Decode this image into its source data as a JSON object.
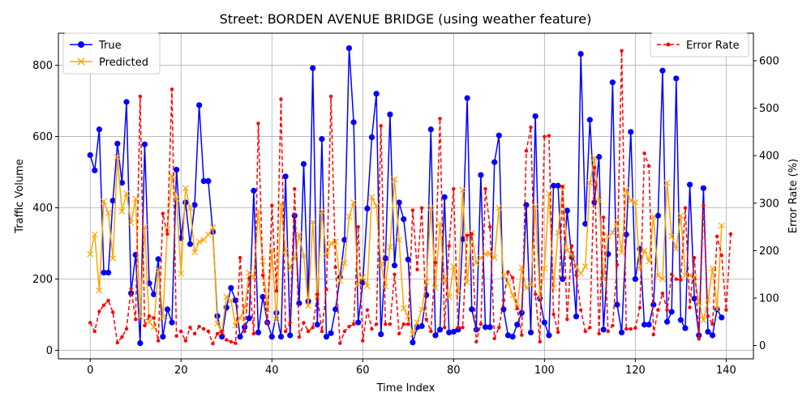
{
  "chart_data": {
    "type": "line",
    "title": "Street: BORDEN AVENUE BRIDGE (using weather feature)",
    "xlabel": "Time Index",
    "ylabel": "Traffic Volume",
    "y2label": "Error Rate (%)",
    "xlim": [
      -7,
      146
    ],
    "ylim": [
      -24,
      890
    ],
    "y2lim": [
      -28,
      658
    ],
    "xticks": [
      0,
      20,
      40,
      60,
      80,
      100,
      120,
      140
    ],
    "yticks": [
      0,
      200,
      400,
      600,
      800
    ],
    "y2ticks": [
      0,
      100,
      200,
      300,
      400,
      500,
      600
    ],
    "grid": true,
    "legend_left": "upper-left",
    "legend_right": "upper-right",
    "colors": {
      "true": "#0000ff",
      "predicted": "#ffa500",
      "error": "#ff0000"
    },
    "series": [
      {
        "name": "True",
        "axis": "left",
        "values": [
          548,
          505,
          620,
          218,
          218,
          420,
          580,
          470,
          697,
          160,
          268,
          20,
          578,
          188,
          157,
          256,
          38,
          115,
          78,
          507,
          315,
          415,
          298,
          408,
          688,
          475,
          475,
          332,
          96,
          38,
          120,
          175,
          140,
          38,
          65,
          90,
          448,
          50,
          150,
          78,
          38,
          105,
          38,
          488,
          42,
          378,
          132,
          523,
          138,
          792,
          72,
          593,
          38,
          48,
          115,
          205,
          310,
          848,
          640,
          78,
          190,
          398,
          598,
          720,
          45,
          258,
          662,
          238,
          415,
          368,
          255,
          22,
          65,
          68,
          155,
          620,
          42,
          58,
          430,
          50,
          52,
          58,
          312,
          708,
          115,
          58,
          492,
          65,
          65,
          528,
          603,
          115,
          42,
          38,
          72,
          105,
          408,
          50,
          657,
          145,
          78,
          42,
          462,
          462,
          200,
          392,
          262,
          95,
          832,
          355,
          647,
          415,
          543,
          58,
          270,
          752,
          128,
          50,
          325,
          613,
          200,
          285,
          72,
          72,
          128,
          378,
          785,
          80,
          108,
          763,
          85,
          62,
          465,
          145,
          42,
          455,
          52,
          42,
          115,
          92
        ]
      },
      {
        "name": "Predicted",
        "axis": "left",
        "values": [
          270,
          325,
          168,
          418,
          385,
          258,
          542,
          390,
          440,
          358,
          425,
          95,
          345,
          80,
          65,
          225,
          92,
          340,
          490,
          425,
          215,
          455,
          400,
          275,
          305,
          310,
          325,
          345,
          75,
          50,
          150,
          140,
          70,
          90,
          120,
          218,
          205,
          390,
          250,
          115,
          280,
          85,
          410,
          280,
          230,
          258,
          325,
          265,
          125,
          360,
          150,
          390,
          265,
          300,
          305,
          195,
          245,
          375,
          415,
          185,
          205,
          180,
          430,
          405,
          242,
          180,
          290,
          480,
          310,
          118,
          95,
          45,
          78,
          115,
          192,
          400,
          175,
          355,
          200,
          150,
          235,
          160,
          450,
          190,
          330,
          245,
          260,
          270,
          272,
          260,
          400,
          210,
          190,
          155,
          120,
          232,
          175,
          185,
          403,
          148,
          230,
          440,
          175,
          330,
          460,
          280,
          270,
          235,
          215,
          235,
          470,
          540,
          420,
          200,
          320,
          330,
          360,
          275,
          450,
          420,
          415,
          230,
          280,
          250,
          375,
          210,
          200,
          470,
          320,
          285,
          378,
          210,
          210,
          205,
          135,
          85,
          140,
          230,
          115,
          350
        ]
      },
      {
        "name": "Error Rate",
        "axis": "right",
        "values": [
          48,
          30,
          72,
          85,
          95,
          70,
          6,
          18,
          35,
          120,
          55,
          525,
          42,
          62,
          58,
          10,
          278,
          235,
          540,
          20,
          30,
          10,
          38,
          25,
          40,
          35,
          30,
          4,
          25,
          30,
          12,
          8,
          5,
          185,
          30,
          142,
          25,
          468,
          148,
          48,
          295,
          115,
          519,
          30,
          48,
          330,
          18,
          48,
          30,
          38,
          108,
          30,
          118,
          525,
          165,
          5,
          30,
          40,
          45,
          250,
          10,
          75,
          35,
          45,
          463,
          45,
          45,
          150,
          25,
          45,
          45,
          285,
          160,
          290,
          55,
          30,
          175,
          478,
          38,
          210,
          330,
          38,
          38,
          232,
          235,
          8,
          45,
          330,
          250,
          15,
          38,
          95,
          155,
          143,
          78,
          22,
          410,
          460,
          108,
          8,
          440,
          442,
          66,
          28,
          335,
          55,
          210,
          148,
          75,
          30,
          38,
          375,
          25,
          270,
          30,
          42,
          170,
          621,
          35,
          35,
          37,
          80,
          405,
          378,
          23,
          75,
          110,
          75,
          150,
          140,
          138,
          290,
          80,
          185,
          14,
          295,
          62,
          45,
          230,
          190,
          75,
          235
        ]
      }
    ]
  }
}
